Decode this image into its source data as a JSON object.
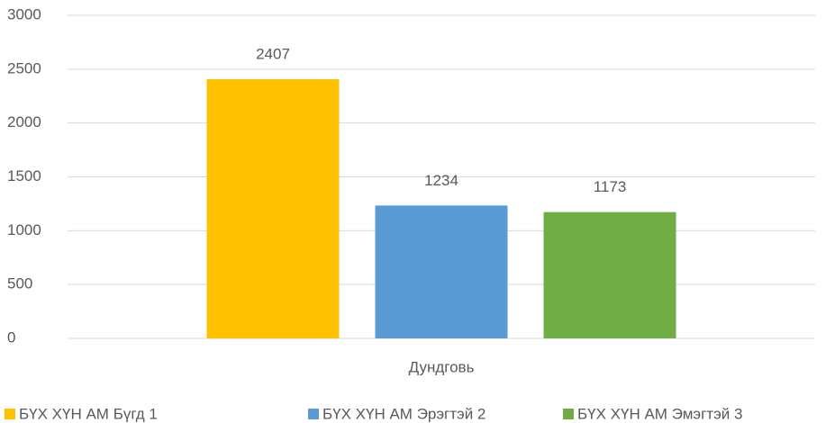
{
  "chart_data": {
    "type": "bar",
    "categories": [
      "Дундговь"
    ],
    "series": [
      {
        "name": "БҮХ ХҮН АМ Бүгд 1",
        "color": "#FFC000",
        "values": [
          2407
        ]
      },
      {
        "name": "БҮХ ХҮН АМ Эрэгтэй 2",
        "color": "#5B9BD5",
        "values": [
          1234
        ]
      },
      {
        "name": "БҮХ ХҮН АМ Эмэгтэй 3",
        "color": "#70AD47",
        "values": [
          1173
        ]
      }
    ],
    "ylim": [
      0,
      3000
    ],
    "yticks": [
      0,
      500,
      1000,
      1500,
      2000,
      2500,
      3000
    ],
    "grid": true,
    "legend": "bottom"
  }
}
